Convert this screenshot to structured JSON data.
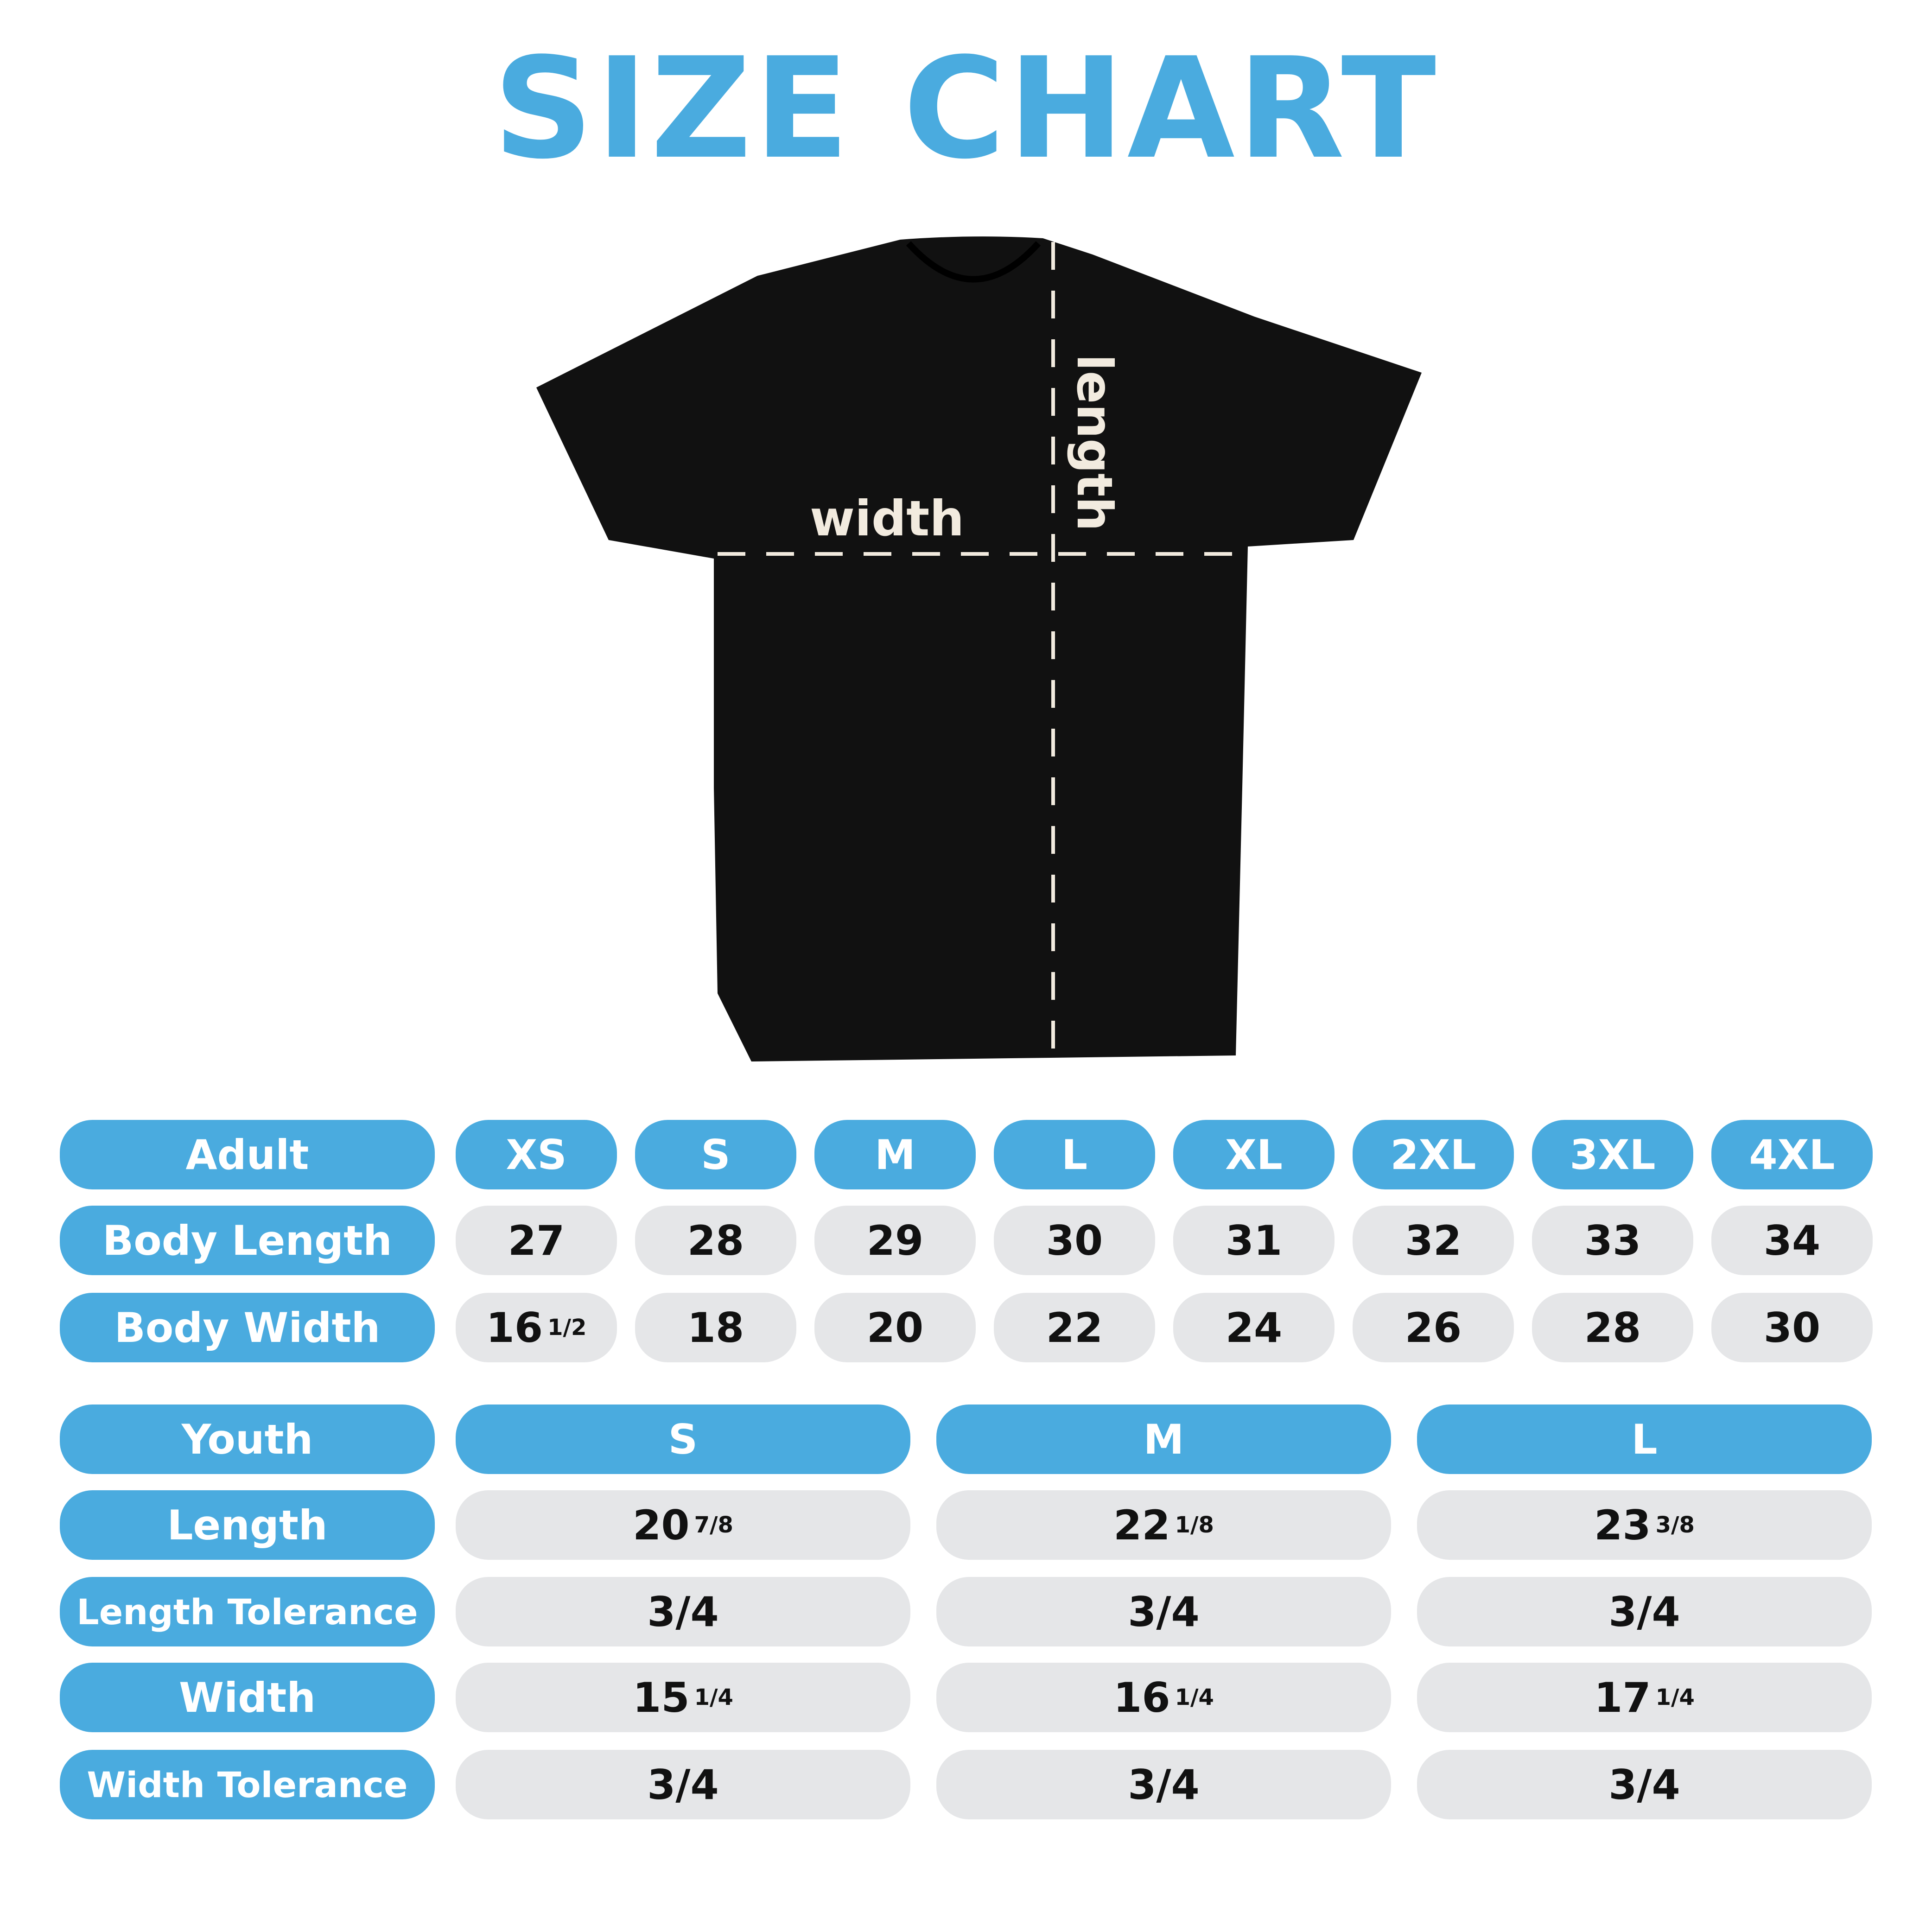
{
  "title": "SIZE CHART",
  "colors": {
    "accent": "#4AABDF",
    "cell_bg": "#E5E6E8",
    "shirt": "#111111"
  },
  "diagram": {
    "width_label": "width",
    "length_label": "length"
  },
  "adult": {
    "header": "Adult",
    "sizes": [
      "XS",
      "S",
      "M",
      "L",
      "XL",
      "2XL",
      "3XL",
      "4XL"
    ],
    "rows": [
      {
        "label": "Body Length",
        "values": [
          [
            "27",
            ""
          ],
          [
            "28",
            ""
          ],
          [
            "29",
            ""
          ],
          [
            "30",
            ""
          ],
          [
            "31",
            ""
          ],
          [
            "32",
            ""
          ],
          [
            "33",
            ""
          ],
          [
            "34",
            ""
          ]
        ]
      },
      {
        "label": "Body Width",
        "values": [
          [
            "16",
            "1/2"
          ],
          [
            "18",
            ""
          ],
          [
            "20",
            ""
          ],
          [
            "22",
            ""
          ],
          [
            "24",
            ""
          ],
          [
            "26",
            ""
          ],
          [
            "28",
            ""
          ],
          [
            "30",
            ""
          ]
        ]
      }
    ]
  },
  "youth": {
    "header": "Youth",
    "sizes": [
      "S",
      "M",
      "L"
    ],
    "rows": [
      {
        "label": "Length",
        "values": [
          [
            "20",
            "7/8"
          ],
          [
            "22",
            "1/8"
          ],
          [
            "23",
            "3/8"
          ]
        ]
      },
      {
        "label": "Length Tolerance",
        "values": [
          [
            "3/4",
            ""
          ],
          [
            "3/4",
            ""
          ],
          [
            "3/4",
            ""
          ]
        ]
      },
      {
        "label": "Width",
        "values": [
          [
            "15",
            "1/4"
          ],
          [
            "16",
            "1/4"
          ],
          [
            "17",
            "1/4"
          ]
        ]
      },
      {
        "label": "Width Tolerance",
        "values": [
          [
            "3/4",
            ""
          ],
          [
            "3/4",
            ""
          ],
          [
            "3/4",
            ""
          ]
        ]
      }
    ]
  }
}
